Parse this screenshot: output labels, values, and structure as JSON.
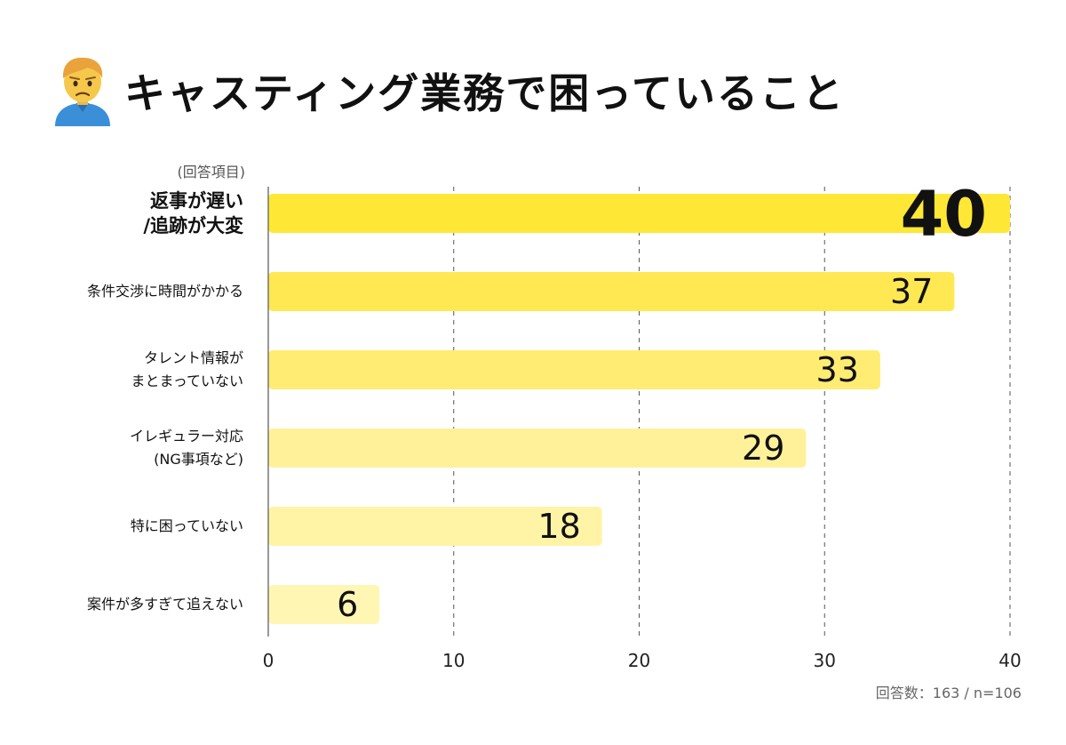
{
  "title": "キャスティング業務で困っていること",
  "emoji_icon": "person-frowning-icon",
  "footnote": "回答数：163 / n=106",
  "chart_data": {
    "type": "bar",
    "orientation": "horizontal",
    "category_header": "(回答項目)",
    "categories": [
      "返事が遅い\n/追跡が大変",
      "条件交渉に時間がかかる",
      "タレント情報が\nまとまっていない",
      "イレギュラー対応\n(NG事項など)",
      "特に困っていない",
      "案件が多すぎて追えない"
    ],
    "values": [
      40,
      37,
      33,
      29,
      18,
      6
    ],
    "xlim": [
      0,
      40
    ],
    "xticks": [
      "0",
      "10",
      "20",
      "30",
      "40"
    ],
    "grid": "vertical dashed",
    "highlight_index": 0,
    "bar_colors": [
      "#FFE835",
      "#FFE852",
      "#FFEC72",
      "#FFF19A",
      "#FFF4A6",
      "#FFF6B4"
    ]
  }
}
